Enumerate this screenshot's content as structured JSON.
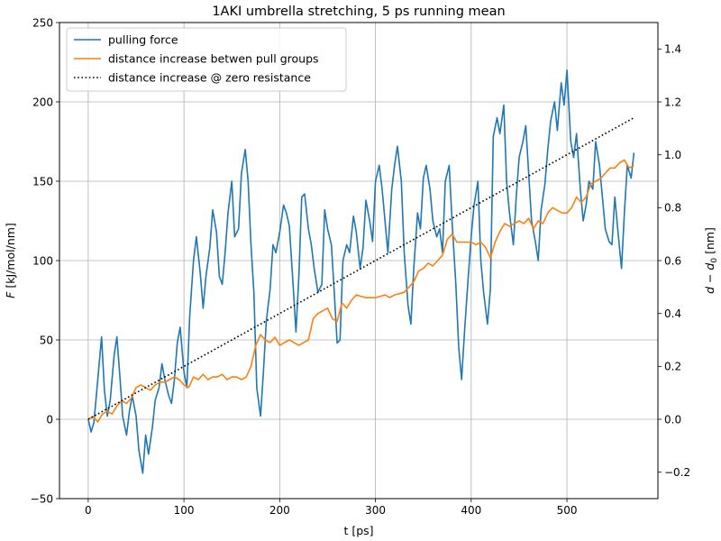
{
  "chart_data": {
    "type": "line",
    "title": "1AKI umbrella stretching, 5 ps running mean",
    "xlabel": "t [ps]",
    "ylabel_left": "F [kJ/mol/nm]",
    "ylabel_right": "d − d0 [nm]",
    "xlim": [
      -30,
      595
    ],
    "ylim_left": [
      -50,
      250
    ],
    "ylim_right": [
      -0.3,
      1.5
    ],
    "x_ticks": [
      0,
      100,
      200,
      300,
      400,
      500
    ],
    "y_ticks_left": [
      -50,
      0,
      50,
      100,
      150,
      200,
      250
    ],
    "y_ticks_right": [
      -0.2,
      0.0,
      0.2,
      0.4,
      0.6,
      0.8,
      1.0,
      1.2,
      1.4
    ],
    "y_tick_labels_right": [
      "−0.2",
      "0.0",
      "0.2",
      "0.4",
      "0.6",
      "0.8",
      "1.0",
      "1.2",
      "1.4"
    ],
    "grid": true,
    "legend_position": "top-left",
    "series": [
      {
        "name": "pulling force",
        "axis": "left",
        "color": "#1f77b4",
        "style": "solid",
        "x": [
          0,
          3,
          6,
          10,
          14,
          17,
          20,
          23,
          27,
          30,
          33,
          36,
          40,
          43,
          46,
          50,
          53,
          57,
          60,
          63,
          67,
          70,
          74,
          77,
          80,
          84,
          87,
          90,
          93,
          96,
          100,
          103,
          106,
          110,
          113,
          117,
          120,
          123,
          127,
          130,
          134,
          137,
          140,
          143,
          146,
          150,
          153,
          157,
          160,
          164,
          167,
          170,
          173,
          176,
          180,
          183,
          186,
          190,
          193,
          196,
          200,
          204,
          207,
          210,
          214,
          217,
          220,
          223,
          226,
          230,
          233,
          236,
          240,
          244,
          247,
          250,
          254,
          257,
          260,
          263,
          266,
          270,
          273,
          277,
          280,
          284,
          287,
          290,
          294,
          297,
          300,
          304,
          307,
          310,
          313,
          317,
          320,
          323,
          327,
          330,
          334,
          337,
          340,
          344,
          347,
          350,
          353,
          357,
          360,
          364,
          367,
          370,
          373,
          377,
          380,
          384,
          387,
          390,
          393,
          397,
          400,
          403,
          407,
          410,
          413,
          417,
          420,
          423,
          427,
          430,
          434,
          437,
          440,
          444,
          447,
          450,
          454,
          457,
          460,
          463,
          467,
          470,
          473,
          477,
          480,
          483,
          487,
          490,
          494,
          497,
          500,
          504,
          507,
          510,
          514,
          517,
          520,
          523,
          527,
          530,
          534,
          537,
          540,
          544,
          547,
          550,
          553,
          557,
          560,
          563,
          567,
          570
        ],
        "y": [
          0,
          -8,
          -2,
          25,
          52,
          18,
          2,
          12,
          40,
          52,
          28,
          2,
          -10,
          5,
          15,
          2,
          -20,
          -34,
          -10,
          -22,
          -5,
          12,
          20,
          35,
          25,
          15,
          10,
          25,
          48,
          58,
          30,
          20,
          65,
          100,
          115,
          92,
          70,
          90,
          108,
          132,
          118,
          90,
          85,
          105,
          130,
          150,
          115,
          120,
          155,
          170,
          150,
          110,
          80,
          20,
          2,
          30,
          62,
          82,
          110,
          105,
          118,
          135,
          130,
          122,
          85,
          55,
          90,
          140,
          142,
          120,
          110,
          95,
          80,
          85,
          132,
          120,
          110,
          80,
          48,
          50,
          100,
          110,
          105,
          128,
          118,
          95,
          108,
          138,
          125,
          112,
          150,
          160,
          145,
          125,
          105,
          145,
          160,
          172,
          150,
          105,
          72,
          60,
          95,
          130,
          120,
          152,
          160,
          145,
          125,
          115,
          120,
          105,
          150,
          160,
          125,
          85,
          45,
          25,
          55,
          90,
          115,
          135,
          150,
          100,
          80,
          60,
          82,
          178,
          190,
          180,
          198,
          150,
          130,
          110,
          140,
          165,
          175,
          185,
          155,
          125,
          112,
          100,
          132,
          148,
          170,
          188,
          200,
          182,
          212,
          198,
          220,
          175,
          165,
          180,
          145,
          125,
          135,
          150,
          145,
          175,
          160,
          140,
          120,
          112,
          110,
          140,
          120,
          95,
          130,
          160,
          152,
          168
        ]
      },
      {
        "name": "distance increase betwen pull groups",
        "axis": "right",
        "color": "#ff7f0e",
        "style": "solid",
        "x": [
          0,
          5,
          10,
          15,
          20,
          25,
          30,
          35,
          40,
          45,
          50,
          55,
          60,
          65,
          70,
          75,
          80,
          85,
          90,
          95,
          100,
          105,
          110,
          115,
          120,
          125,
          130,
          135,
          140,
          145,
          150,
          155,
          160,
          165,
          170,
          175,
          180,
          185,
          190,
          195,
          200,
          210,
          220,
          230,
          235,
          240,
          250,
          255,
          260,
          265,
          270,
          275,
          280,
          290,
          300,
          310,
          315,
          320,
          330,
          340,
          345,
          350,
          355,
          360,
          365,
          370,
          375,
          380,
          385,
          390,
          395,
          400,
          405,
          410,
          415,
          420,
          425,
          430,
          435,
          440,
          445,
          450,
          455,
          460,
          465,
          470,
          475,
          480,
          485,
          490,
          495,
          500,
          505,
          510,
          515,
          520,
          525,
          530,
          535,
          540,
          545,
          550,
          555,
          560,
          565,
          570
        ],
        "y": [
          0.0,
          0.01,
          -0.01,
          0.02,
          0.03,
          0.02,
          0.05,
          0.07,
          0.06,
          0.08,
          0.12,
          0.13,
          0.12,
          0.11,
          0.13,
          0.14,
          0.14,
          0.15,
          0.16,
          0.15,
          0.13,
          0.12,
          0.16,
          0.15,
          0.17,
          0.15,
          0.16,
          0.16,
          0.17,
          0.15,
          0.16,
          0.16,
          0.15,
          0.16,
          0.2,
          0.28,
          0.32,
          0.3,
          0.29,
          0.31,
          0.28,
          0.3,
          0.28,
          0.3,
          0.38,
          0.4,
          0.42,
          0.38,
          0.37,
          0.44,
          0.42,
          0.45,
          0.47,
          0.46,
          0.46,
          0.47,
          0.46,
          0.47,
          0.48,
          0.52,
          0.56,
          0.57,
          0.59,
          0.58,
          0.6,
          0.62,
          0.68,
          0.7,
          0.67,
          0.67,
          0.67,
          0.67,
          0.66,
          0.67,
          0.65,
          0.61,
          0.67,
          0.71,
          0.74,
          0.73,
          0.74,
          0.75,
          0.74,
          0.76,
          0.72,
          0.75,
          0.74,
          0.78,
          0.8,
          0.79,
          0.78,
          0.78,
          0.8,
          0.84,
          0.82,
          0.84,
          0.89,
          0.9,
          0.91,
          0.93,
          0.95,
          0.95,
          0.97,
          0.98,
          0.95,
          0.96
        ]
      },
      {
        "name": "distance increase @ zero resistance",
        "axis": "right",
        "color": "#000000",
        "style": "dotted",
        "x": [
          0,
          570
        ],
        "y": [
          0.0,
          1.14
        ]
      }
    ]
  }
}
